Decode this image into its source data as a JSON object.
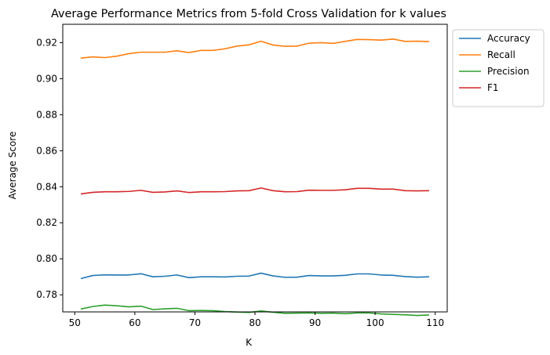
{
  "chart_data": {
    "type": "line",
    "title": "Average Performance Metrics from 5-fold Cross Validation for k values",
    "xlabel": "K",
    "ylabel": "Average Score",
    "xlim": [
      48,
      112
    ],
    "ylim": [
      0.7705,
      0.9302
    ],
    "xticks": [
      50,
      60,
      70,
      80,
      90,
      100,
      110
    ],
    "yticks": [
      0.78,
      0.8,
      0.82,
      0.84,
      0.86,
      0.88,
      0.9,
      0.92
    ],
    "ytick_labels": [
      "0.78",
      "0.80",
      "0.82",
      "0.84",
      "0.86",
      "0.88",
      "0.90",
      "0.92"
    ],
    "xtick_labels": [
      "50",
      "60",
      "70",
      "80",
      "90",
      "100",
      "110"
    ],
    "legend_position": "outside-top-right",
    "grid": false,
    "x": [
      51,
      53,
      55,
      57,
      59,
      61,
      63,
      65,
      67,
      69,
      71,
      73,
      75,
      77,
      79,
      81,
      83,
      85,
      87,
      89,
      91,
      93,
      95,
      97,
      99,
      101,
      103,
      105,
      107,
      109
    ],
    "series": [
      {
        "name": "Accuracy",
        "color": "#1f77b4",
        "values": [
          0.789,
          0.7907,
          0.7911,
          0.791,
          0.791,
          0.7917,
          0.79,
          0.7903,
          0.791,
          0.7895,
          0.79,
          0.79,
          0.7899,
          0.7903,
          0.7904,
          0.792,
          0.7905,
          0.7897,
          0.7898,
          0.7907,
          0.7905,
          0.7905,
          0.7908,
          0.7916,
          0.7916,
          0.791,
          0.7908,
          0.7901,
          0.7898,
          0.79
        ]
      },
      {
        "name": "Recall",
        "color": "#ff7f0e",
        "values": [
          0.9114,
          0.9121,
          0.9117,
          0.9125,
          0.9139,
          0.9147,
          0.9147,
          0.9147,
          0.9155,
          0.9145,
          0.9157,
          0.9157,
          0.9166,
          0.9181,
          0.9188,
          0.9208,
          0.9187,
          0.918,
          0.9181,
          0.9197,
          0.92,
          0.9196,
          0.9207,
          0.9218,
          0.9217,
          0.9214,
          0.922,
          0.9207,
          0.9208,
          0.9206
        ]
      },
      {
        "name": "Precision",
        "color": "#2ca02c",
        "values": [
          0.7721,
          0.7735,
          0.7743,
          0.7739,
          0.7733,
          0.7737,
          0.7718,
          0.7722,
          0.7725,
          0.7712,
          0.7713,
          0.7712,
          0.7707,
          0.7704,
          0.7702,
          0.771,
          0.7703,
          0.7697,
          0.7698,
          0.7699,
          0.7697,
          0.7698,
          0.7695,
          0.7699,
          0.7699,
          0.7694,
          0.7691,
          0.7689,
          0.7685,
          0.7688
        ]
      },
      {
        "name": "F1",
        "color": "#d62728",
        "values": [
          0.836,
          0.8369,
          0.8372,
          0.8372,
          0.8374,
          0.838,
          0.8369,
          0.8371,
          0.8377,
          0.8368,
          0.8372,
          0.8372,
          0.8373,
          0.8377,
          0.8378,
          0.8393,
          0.8378,
          0.8372,
          0.8373,
          0.8381,
          0.838,
          0.838,
          0.8383,
          0.8391,
          0.8391,
          0.8387,
          0.8387,
          0.8378,
          0.8377,
          0.8378
        ]
      }
    ]
  }
}
